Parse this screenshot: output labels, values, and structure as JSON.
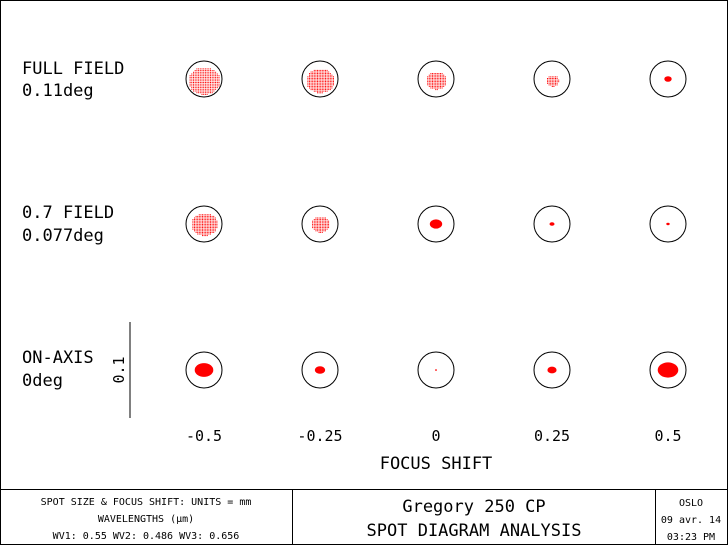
{
  "rows": [
    {
      "line1": "FULL FIELD",
      "line2": "0.11deg",
      "spots": [
        {
          "kind": "dots",
          "size": 0.85
        },
        {
          "kind": "dots",
          "size": 0.75
        },
        {
          "kind": "dots",
          "size": 0.55
        },
        {
          "kind": "dots",
          "size": 0.35
        },
        {
          "kind": "blob",
          "size": 0.18
        }
      ]
    },
    {
      "line1": "0.7 FIELD",
      "line2": "0.077deg",
      "spots": [
        {
          "kind": "dots",
          "size": 0.7
        },
        {
          "kind": "dots",
          "size": 0.5
        },
        {
          "kind": "blob",
          "size": 0.3
        },
        {
          "kind": "blob",
          "size": 0.12
        },
        {
          "kind": "blob",
          "size": 0.08
        }
      ]
    },
    {
      "line1": "ON-AXIS",
      "line2": "0deg",
      "spots": [
        {
          "kind": "blob",
          "size": 0.45
        },
        {
          "kind": "blob",
          "size": 0.25
        },
        {
          "kind": "blob",
          "size": 0.03
        },
        {
          "kind": "blob",
          "size": 0.22
        },
        {
          "kind": "blob",
          "size": 0.5
        }
      ]
    }
  ],
  "scale_bar_label": "0.1",
  "focus_shift_values": [
    "-0.5",
    "-0.25",
    "0",
    "0.25",
    "0.5"
  ],
  "x_axis_label": "FOCUS SHIFT",
  "footer": {
    "left_line1": "SPOT SIZE & FOCUS SHIFT: UNITS = mm",
    "left_line2": "WAVELENGTHS (µm)",
    "left_line3": "WV1: 0.55 WV2: 0.486 WV3: 0.656",
    "title_line1": "Gregory 250 CP",
    "title_line2": "SPOT DIAGRAM ANALYSIS",
    "right_line1": "OSLO",
    "right_line2": "09 avr. 14",
    "right_line3": "03:23 PM"
  },
  "colors": {
    "spot": "#ff0000",
    "line": "#000000",
    "background": "#ffffff"
  }
}
